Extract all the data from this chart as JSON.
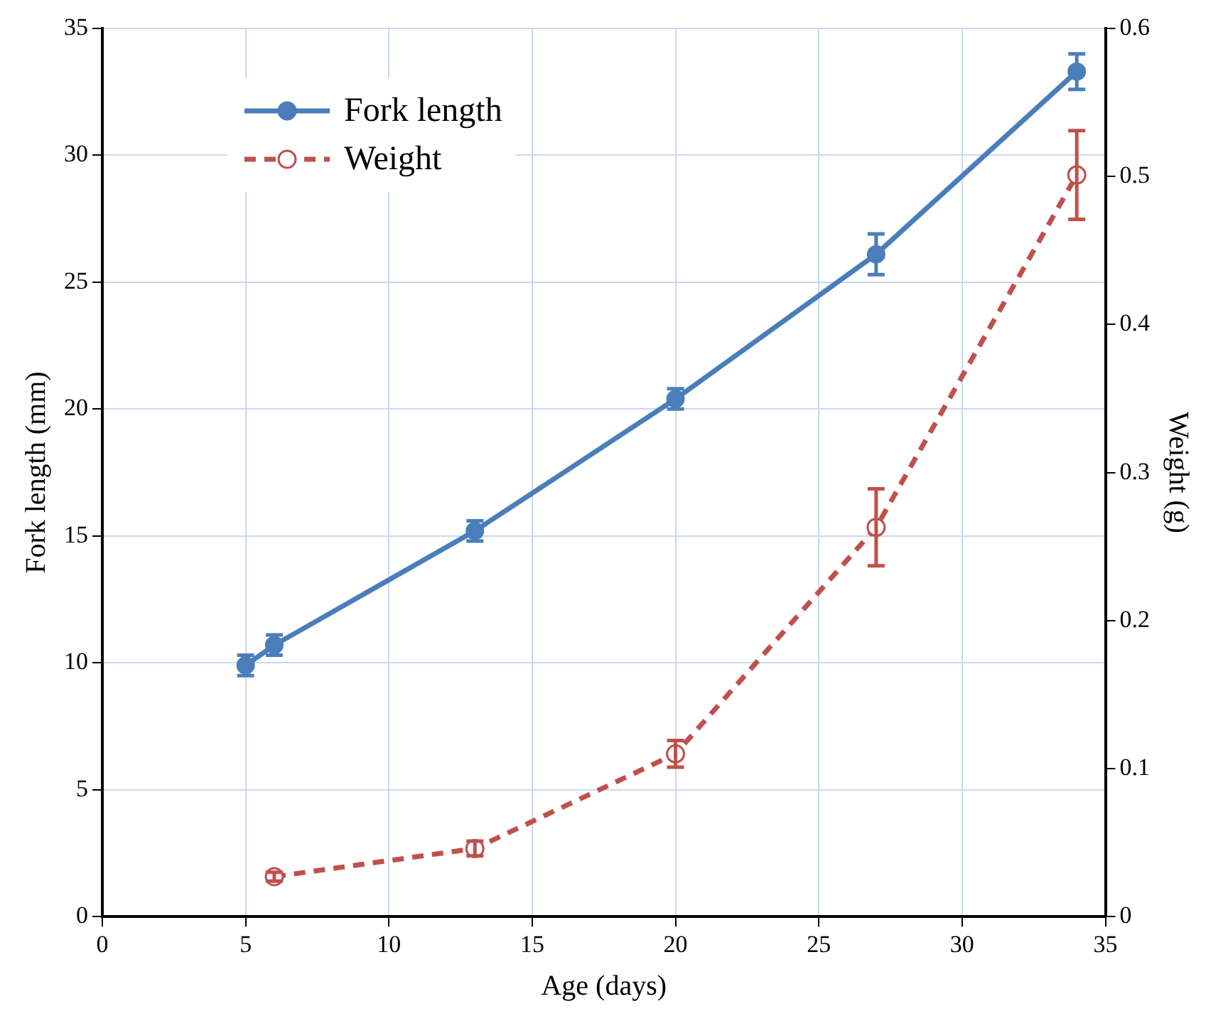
{
  "chart_data": {
    "type": "line",
    "xlabel": "Age (days)",
    "ylabel": "Fork length (mm)",
    "y2label": "Weight (g)",
    "xlim": [
      0,
      35
    ],
    "xticks": [
      0,
      5,
      10,
      15,
      20,
      25,
      30,
      35
    ],
    "ylim": [
      0,
      35
    ],
    "yticks": [
      0,
      5,
      10,
      15,
      20,
      25,
      30,
      35
    ],
    "y2lim": [
      0,
      0.6
    ],
    "y2ticks": [
      0,
      0.1,
      0.2,
      0.3,
      0.4,
      0.5,
      0.6
    ],
    "grid": true,
    "legend": "top left",
    "series": [
      {
        "name": "Fork length",
        "color": "#4a7ebb",
        "x": [
          5,
          6,
          13,
          20,
          27,
          34
        ],
        "values": [
          9.9,
          10.7,
          15.2,
          20.4,
          26.1,
          33.3
        ],
        "errors": [
          0.4,
          0.4,
          0.4,
          0.4,
          0.8,
          0.7
        ],
        "marker": "circle",
        "line_style": "solid"
      },
      {
        "name": "Weight",
        "color": "#c0504d",
        "axis": "y2",
        "x": [
          6,
          13,
          20,
          27,
          34
        ],
        "values": [
          0.027,
          0.046,
          0.11,
          0.263,
          0.501
        ],
        "errors": [
          0.003,
          0.005,
          0.009,
          0.026,
          0.03
        ],
        "marker": "circle",
        "line_style": "dashed"
      }
    ]
  }
}
